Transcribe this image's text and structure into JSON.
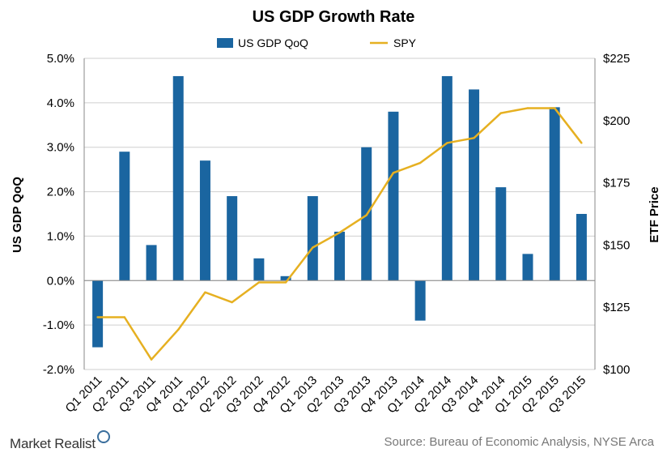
{
  "colors": {
    "bar": "#1a65a0",
    "line": "#e6b021",
    "grid": "#cfcfcf",
    "axis": "#888888"
  },
  "branding": {
    "logo_text": "Market Realist"
  },
  "footer": {
    "source": "Source:  Bureau of Economic Analysis, NYSE Arca"
  },
  "chart_data": {
    "type": "bar",
    "title": "US GDP Growth Rate",
    "ylabel": "US GDP QoQ",
    "y2label": "ETF Price",
    "ylim": [
      -2.0,
      5.0
    ],
    "y2lim": [
      100,
      225
    ],
    "yticks": [
      "5.0%",
      "4.0%",
      "3.0%",
      "2.0%",
      "1.0%",
      "0.0%",
      "-1.0%",
      "-2.0%"
    ],
    "y2ticks": [
      "$225",
      "$200",
      "$175",
      "$150",
      "$125",
      "$100"
    ],
    "grid": true,
    "legend_position": "top",
    "categories": [
      "Q1 2011",
      "Q2 2011",
      "Q3 2011",
      "Q4 2011",
      "Q1 2012",
      "Q2 2012",
      "Q3 2012",
      "Q4 2012",
      "Q1 2013",
      "Q2 2013",
      "Q3 2013",
      "Q4 2013",
      "Q1 2014",
      "Q2 2014",
      "Q3 2014",
      "Q4 2014",
      "Q1 2015",
      "Q2 2015",
      "Q3 2015"
    ],
    "series": [
      {
        "name": "US GDP QoQ",
        "type": "bar",
        "axis": "left",
        "values": [
          -1.5,
          2.9,
          0.8,
          4.6,
          2.7,
          1.9,
          0.5,
          0.1,
          1.9,
          1.1,
          3.0,
          3.8,
          -0.9,
          4.6,
          4.3,
          2.1,
          0.6,
          3.9,
          1.5
        ]
      },
      {
        "name": "SPY",
        "type": "line",
        "axis": "right",
        "values": [
          121,
          121,
          104,
          116,
          131,
          127,
          135,
          135,
          149,
          155,
          162,
          179,
          183,
          191,
          193,
          203,
          205,
          205,
          191
        ]
      }
    ]
  }
}
